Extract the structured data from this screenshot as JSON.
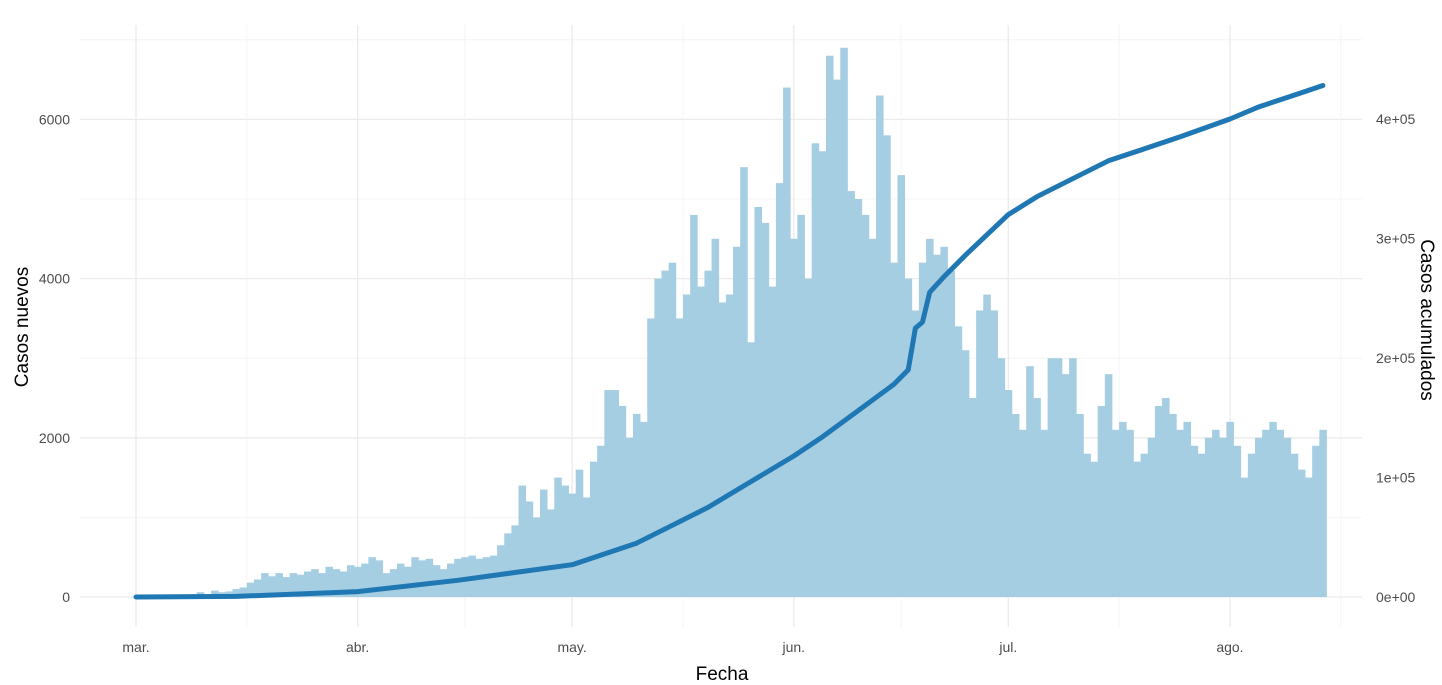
{
  "chart_data": {
    "type": "bar",
    "title": "",
    "xlabel": "Fecha",
    "ylabel": "Casos nuevos",
    "y2label": "Casos acumulados",
    "ylim": [
      0,
      7000
    ],
    "y2lim": [
      0,
      435000
    ],
    "grid": true,
    "colors": {
      "bars": "#a6cee3",
      "line": "#1f78b4",
      "grid": "#ebebeb"
    },
    "x_ticks": [
      "mar.",
      "abr.",
      "may.",
      "jun.",
      "jul.",
      "ago."
    ],
    "y_ticks": [
      "0",
      "2000",
      "4000",
      "6000"
    ],
    "y2_ticks": [
      "0e+00",
      "1e+05",
      "2e+05",
      "3e+05",
      "4e+05"
    ],
    "series": [
      {
        "type": "bar",
        "start_date": "2020-03-01",
        "values": [
          0,
          0,
          0,
          0,
          0,
          0,
          0,
          0,
          20,
          60,
          30,
          80,
          60,
          70,
          100,
          120,
          180,
          220,
          300,
          260,
          300,
          250,
          300,
          280,
          320,
          350,
          300,
          380,
          350,
          320,
          400,
          380,
          420,
          500,
          460,
          300,
          350,
          420,
          380,
          500,
          460,
          480,
          400,
          350,
          420,
          480,
          500,
          520,
          480,
          500,
          520,
          650,
          800,
          900,
          1400,
          1200,
          1000,
          1350,
          1100,
          1500,
          1400,
          1300,
          1600,
          1250,
          1700,
          1900,
          2600,
          2600,
          2400,
          2000,
          2300,
          2200,
          3500,
          4000,
          4100,
          4200,
          3500,
          3800,
          4800,
          3900,
          4100,
          4500,
          3700,
          3800,
          4400,
          5400,
          3200,
          4900,
          4700,
          3900,
          5200,
          6400,
          4500,
          4800,
          4000,
          5700,
          5600,
          6800,
          6500,
          6900,
          5100,
          5000,
          4800,
          4500,
          6300,
          5800,
          4200,
          5300,
          4000,
          3600,
          4200,
          4500,
          4300,
          4400,
          4100,
          3400,
          3100,
          2500,
          3600,
          3800,
          3600,
          3000,
          2600,
          2300,
          2100,
          2900,
          2500,
          2100,
          3000,
          3000,
          2800,
          3000,
          2300,
          1800,
          1700,
          2400,
          2800,
          2100,
          2200,
          2100,
          1700,
          1800,
          2000,
          2400,
          2500,
          2300,
          2100,
          2200,
          1900,
          1800,
          2000,
          2100,
          2000,
          2200,
          1900,
          1500,
          1800,
          2000,
          2100,
          2200,
          2100,
          2000,
          1800,
          1600,
          1500,
          1900,
          2100
        ]
      },
      {
        "type": "line",
        "x": [
          "2020-03-01",
          "2020-03-15",
          "2020-04-01",
          "2020-04-15",
          "2020-05-01",
          "2020-05-10",
          "2020-05-15",
          "2020-05-20",
          "2020-05-25",
          "2020-06-01",
          "2020-06-05",
          "2020-06-10",
          "2020-06-15",
          "2020-06-17",
          "2020-06-18",
          "2020-06-19",
          "2020-06-20",
          "2020-06-22",
          "2020-06-25",
          "2020-07-01",
          "2020-07-05",
          "2020-07-10",
          "2020-07-15",
          "2020-07-20",
          "2020-07-25",
          "2020-08-01",
          "2020-08-05",
          "2020-08-10",
          "2020-08-14"
        ],
        "values": [
          0,
          500,
          4500,
          14000,
          27000,
          45000,
          60000,
          75000,
          93000,
          118000,
          134000,
          156000,
          178000,
          190000,
          225000,
          230000,
          255000,
          268000,
          286000,
          320000,
          335000,
          350000,
          365000,
          375000,
          385000,
          400000,
          410000,
          420000,
          428000
        ]
      }
    ]
  }
}
